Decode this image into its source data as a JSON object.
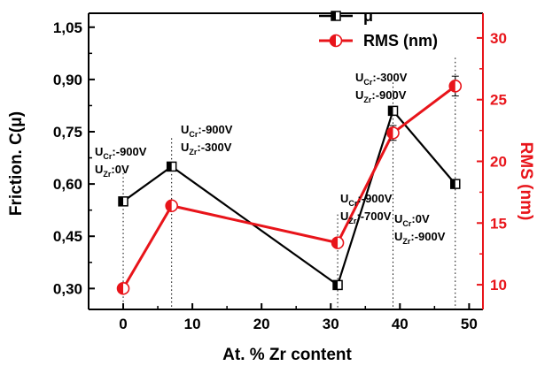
{
  "chart_data": {
    "type": "line",
    "title": "",
    "xlabel": "At. % Zr content",
    "ylabel_left": "Friction. C(μ)",
    "ylabel_right": "RMS (nm)",
    "xlim": [
      -5,
      52
    ],
    "ylim_left": [
      0.24,
      1.09
    ],
    "ylim_right": [
      8.0,
      32.0
    ],
    "x_ticks": [
      0,
      10,
      20,
      30,
      40,
      50
    ],
    "y_left_ticks": [
      "0,30",
      "0,45",
      "0,60",
      "0,75",
      "0,90",
      "1,05"
    ],
    "y_left_tick_values": [
      0.3,
      0.45,
      0.6,
      0.75,
      0.9,
      1.05
    ],
    "y_right_ticks": [
      10,
      15,
      20,
      25,
      30
    ],
    "grid": false,
    "legend_position": "top-right",
    "colors": {
      "friction": "#000000",
      "rms": "#e8141a"
    },
    "series": [
      {
        "name": "μ",
        "axis": "left",
        "x": [
          0,
          7,
          31,
          39,
          48
        ],
        "y": [
          0.55,
          0.65,
          0.31,
          0.81,
          0.6
        ]
      },
      {
        "name": "RMS (nm)",
        "axis": "right",
        "x": [
          0,
          7,
          31,
          39,
          48
        ],
        "y": [
          9.7,
          16.4,
          13.4,
          22.3,
          26.1
        ],
        "error": [
          0,
          0,
          0,
          0.6,
          0.8
        ]
      }
    ],
    "annotations": [
      {
        "x": 0,
        "cr": "-900V",
        "zr": "0V"
      },
      {
        "x": 7,
        "cr": "-900V",
        "zr": "-300V"
      },
      {
        "x": 31,
        "cr": "-900V",
        "zr": "-700V"
      },
      {
        "x": 39,
        "cr": "-300V",
        "zr": "-900V"
      },
      {
        "x": 48,
        "cr": "0V",
        "zr": "-900V"
      }
    ]
  }
}
